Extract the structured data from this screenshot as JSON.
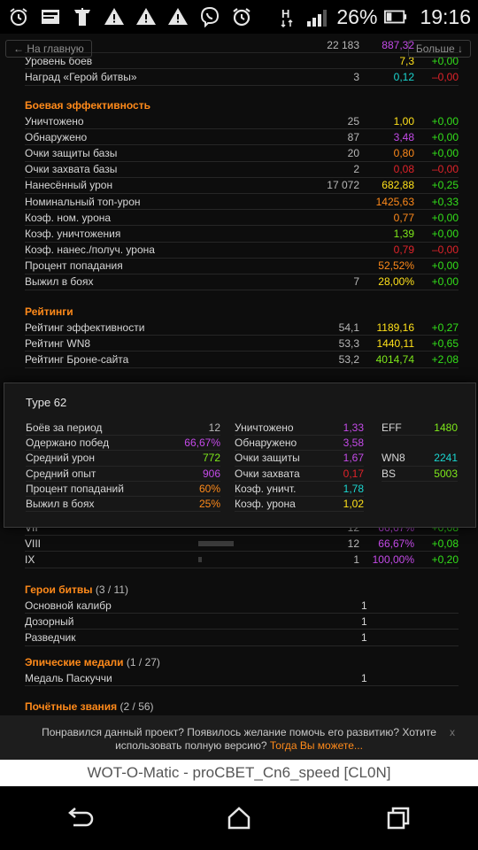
{
  "status_bar": {
    "battery_percent": "26%",
    "time": "19:16",
    "icons": [
      "alarm-icon",
      "message-icon",
      "tank-icon",
      "warning-icon",
      "warning-icon",
      "warning-icon",
      "viber-icon",
      "alarm-clock-icon",
      "network-h-icon",
      "signal-icon",
      "battery-icon"
    ]
  },
  "nav": {
    "back_label": "← На главную",
    "more_label": "Больше ↓"
  },
  "top_rows": [
    {
      "label": "",
      "c1": "22 183",
      "c2": "887,32",
      "c3": "",
      "c2_color": "#c44ae8",
      "c3_color": "#33e01a"
    },
    {
      "label": "Уровень боев",
      "c1": "",
      "c2": "7,3",
      "c3": "+0,00",
      "c2_color": "#ffe11a",
      "c3_color": "#33e01a"
    },
    {
      "label": "Наград «Герой битвы»",
      "c1": "3",
      "c2": "0,12",
      "c3": "–0,00",
      "c2_color": "#1ad6d0",
      "c3_color": "#e0232a"
    }
  ],
  "battle_efficiency": {
    "title": "Боевая эффективность",
    "rows": [
      {
        "label": "Уничтожено",
        "c1": "25",
        "c2": "1,00",
        "c3": "+0,00",
        "c2_color": "#ffe11a",
        "c3_color": "#33e01a"
      },
      {
        "label": "Обнаружено",
        "c1": "87",
        "c2": "3,48",
        "c3": "+0,00",
        "c2_color": "#c44ae8",
        "c3_color": "#33e01a"
      },
      {
        "label": "Очки защиты базы",
        "c1": "20",
        "c2": "0,80",
        "c3": "+0,00",
        "c2_color": "#ff8a1a",
        "c3_color": "#33e01a"
      },
      {
        "label": "Очки захвата базы",
        "c1": "2",
        "c2": "0,08",
        "c3": "–0,00",
        "c2_color": "#e0232a",
        "c3_color": "#e0232a"
      },
      {
        "label": "Нанесённый урон",
        "c1": "17 072",
        "c2": "682,88",
        "c3": "+0,25",
        "c2_color": "#ffe11a",
        "c3_color": "#33e01a"
      },
      {
        "label": "Номинальный топ-урон",
        "c1": "",
        "c2": "1425,63",
        "c3": "+0,33",
        "c2_color": "#ff8a1a",
        "c3_color": "#33e01a"
      },
      {
        "label": "Коэф. ном. урона",
        "c1": "",
        "c2": "0,77",
        "c3": "+0,00",
        "c2_color": "#ff8a1a",
        "c3_color": "#33e01a"
      },
      {
        "label": "Коэф. уничтожения",
        "c1": "",
        "c2": "1,39",
        "c3": "+0,00",
        "c2_color": "#7ee81a",
        "c3_color": "#33e01a"
      },
      {
        "label": "Коэф. нанес./получ. урона",
        "c1": "",
        "c2": "0,79",
        "c3": "–0,00",
        "c2_color": "#e0232a",
        "c3_color": "#e0232a"
      },
      {
        "label": "Процент попадания",
        "c1": "",
        "c2": "52,52%",
        "c3": "+0,00",
        "c2_color": "#ff8a1a",
        "c3_color": "#33e01a"
      },
      {
        "label": "Выжил в боях",
        "c1": "7",
        "c2": "28,00%",
        "c3": "+0,00",
        "c2_color": "#ffe11a",
        "c3_color": "#33e01a"
      }
    ]
  },
  "ratings": {
    "title": "Рейтинги",
    "rows": [
      {
        "label": "Рейтинг эффективности",
        "c1": "54,1",
        "c2": "1189,16",
        "c3": "+0,27",
        "c2_color": "#ffe11a",
        "c3_color": "#33e01a"
      },
      {
        "label": "Рейтинг WN8",
        "c1": "53,3",
        "c2": "1440,11",
        "c3": "+0,65",
        "c2_color": "#ffe11a",
        "c3_color": "#33e01a"
      },
      {
        "label": "Рейтинг Броне-сайта",
        "c1": "53,2",
        "c2": "4014,74",
        "c3": "+2,08",
        "c2_color": "#7ee81a",
        "c3_color": "#33e01a"
      }
    ]
  },
  "tier_rows": [
    {
      "label": "VII",
      "bar": 0.0,
      "c1": "12",
      "c2": "66,67%",
      "c3": "+0,08",
      "c2_color": "#c44ae8",
      "c3_color": "#33e01a"
    },
    {
      "label": "VIII",
      "bar": 0.5,
      "c1": "12",
      "c2": "66,67%",
      "c3": "+0,08",
      "c2_color": "#c44ae8",
      "c3_color": "#33e01a"
    },
    {
      "label": "IX",
      "bar": 0.05,
      "c1": "1",
      "c2": "100,00%",
      "c3": "+0,20",
      "c2_color": "#c44ae8",
      "c3_color": "#33e01a"
    }
  ],
  "heroes": {
    "title": "Герои битвы",
    "count": "(3 / 11)",
    "rows": [
      {
        "label": "Основной калибр",
        "value": "1"
      },
      {
        "label": "Дозорный",
        "value": "1"
      },
      {
        "label": "Разведчик",
        "value": "1"
      }
    ]
  },
  "epic": {
    "title": "Эпические медали",
    "count": "(1 / 27)",
    "rows": [
      {
        "label": "Медаль Паскуччи",
        "value": "1"
      }
    ]
  },
  "honors": {
    "title": "Почётные звания",
    "count": "(2 / 56)"
  },
  "tooltip": {
    "title": "Type 62",
    "col1": [
      {
        "label": "Боёв за период",
        "value": "12",
        "color": "#b8b8b8"
      },
      {
        "label": "Одержано побед",
        "value": "66,67%",
        "color": "#c44ae8"
      },
      {
        "label": "Средний урон",
        "value": "772",
        "color": "#7ee81a"
      },
      {
        "label": "Средний опыт",
        "value": "906",
        "color": "#c44ae8"
      },
      {
        "label": "Процент попаданий",
        "value": "60%",
        "color": "#ff8a1a"
      },
      {
        "label": "Выжил в боях",
        "value": "25%",
        "color": "#ff8a1a"
      }
    ],
    "col2": [
      {
        "label": "Уничтожено",
        "value": "1,33",
        "color": "#c44ae8"
      },
      {
        "label": "Обнаружено",
        "value": "3,58",
        "color": "#c44ae8"
      },
      {
        "label": "Очки защиты",
        "value": "1,67",
        "color": "#c44ae8"
      },
      {
        "label": "Очки захвата",
        "value": "0,17",
        "color": "#e0232a"
      },
      {
        "label": "Коэф. уничт.",
        "value": "1,78",
        "color": "#1ad6d0"
      },
      {
        "label": "Коэф. урона",
        "value": "1,02",
        "color": "#ffe11a"
      }
    ],
    "col3": [
      {
        "label": "EFF",
        "value": "1480",
        "color": "#7ee81a"
      },
      {
        "label": "",
        "value": "",
        "color": "#b8b8b8"
      },
      {
        "label": "WN8",
        "value": "2241",
        "color": "#1ad6d0"
      },
      {
        "label": "BS",
        "value": "5003",
        "color": "#7ee81a"
      }
    ]
  },
  "banner": {
    "text": "Понравился данный проект? Появилось желание помочь его развитию? Хотите использовать полную версию?",
    "link": "Тогда Вы можете...",
    "close": "x"
  },
  "app_title": "WOT-O-Matic - proCBET_Cn6_speed [CL0N]"
}
